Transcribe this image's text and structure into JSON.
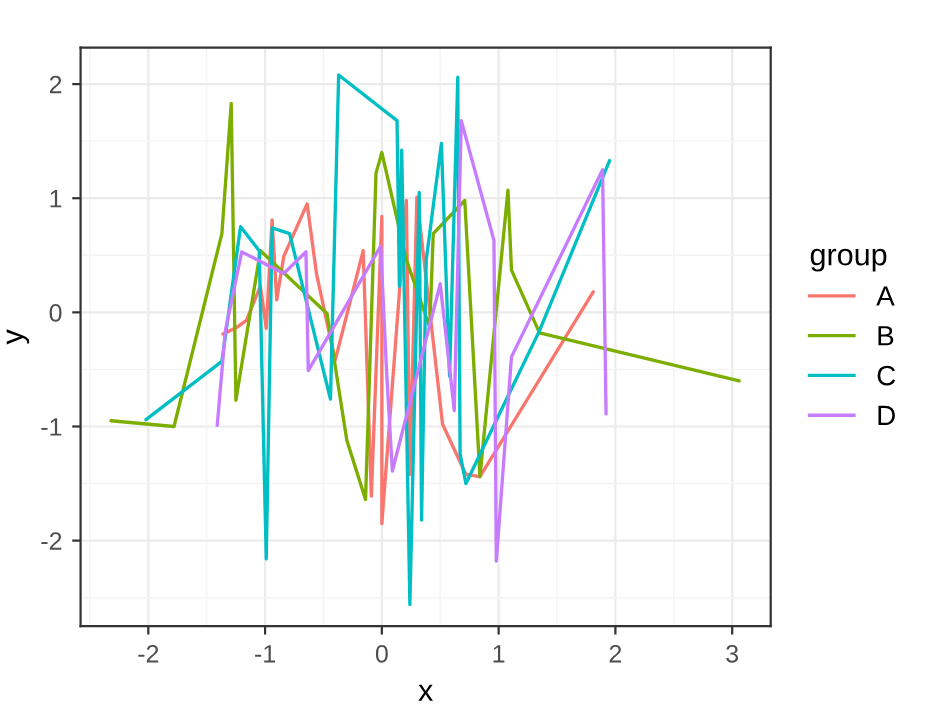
{
  "chart_data": {
    "type": "line",
    "xlabel": "x",
    "ylabel": "y",
    "legend_title": "group",
    "legend": "right",
    "grid": true,
    "xlim": [
      -2.58,
      3.33
    ],
    "ylim": [
      -2.75,
      2.32
    ],
    "xticks": [
      -2,
      -1,
      0,
      1,
      2,
      3
    ],
    "yticks": [
      -2,
      -1,
      0,
      1,
      2
    ],
    "series": [
      {
        "name": "A",
        "color": "#f8766d",
        "x": [
          -1.36,
          -1.24,
          -1.16,
          -1.04,
          -0.99,
          -0.94,
          -0.9,
          -0.84,
          -0.64,
          -0.56,
          -0.4,
          -0.16,
          -0.09,
          0.0,
          0.0,
          0.21,
          0.24,
          0.3,
          0.52,
          0.72,
          0.84,
          1.81
        ],
        "values": [
          -0.19,
          -0.13,
          -0.07,
          0.23,
          -0.14,
          0.81,
          0.11,
          0.49,
          0.95,
          0.34,
          -0.42,
          0.54,
          -1.61,
          0.84,
          -1.85,
          0.98,
          -1.42,
          1.01,
          -0.98,
          -1.42,
          -1.44,
          0.18
        ]
      },
      {
        "name": "B",
        "color": "#7cae00",
        "x": [
          -2.32,
          -1.78,
          -1.37,
          -1.29,
          -1.25,
          -1.04,
          -0.47,
          -0.3,
          -0.14,
          -0.05,
          0.0,
          0.21,
          0.41,
          0.44,
          0.71,
          0.84,
          1.08,
          1.11,
          1.35,
          3.06
        ],
        "values": [
          -0.95,
          -1.0,
          0.69,
          1.83,
          -0.77,
          0.54,
          -0.01,
          -1.12,
          -1.64,
          1.22,
          1.4,
          0.46,
          -0.13,
          0.69,
          0.98,
          -1.44,
          1.07,
          0.37,
          -0.18,
          -0.6
        ]
      },
      {
        "name": "C",
        "color": "#00bfc4",
        "x": [
          -2.02,
          -1.37,
          -1.21,
          -1.05,
          -0.99,
          -0.94,
          -0.79,
          -0.44,
          -0.37,
          0.13,
          0.15,
          0.17,
          0.24,
          0.32,
          0.34,
          0.38,
          0.51,
          0.58,
          0.65,
          0.67,
          0.72,
          1.35,
          1.95
        ],
        "values": [
          -0.94,
          -0.43,
          0.75,
          0.54,
          -2.16,
          0.74,
          0.69,
          -0.76,
          2.08,
          1.68,
          0.23,
          1.42,
          -2.56,
          1.05,
          -1.82,
          0.46,
          1.48,
          -0.56,
          2.06,
          -1.24,
          -1.5,
          -0.16,
          1.33
        ]
      },
      {
        "name": "D",
        "color": "#c77cff",
        "x": [
          -1.41,
          -1.34,
          -1.2,
          -0.84,
          -0.65,
          -0.63,
          -0.01,
          0.04,
          0.09,
          0.5,
          0.62,
          0.68,
          0.96,
          0.98,
          1.11,
          1.89,
          1.92
        ],
        "values": [
          -0.99,
          -0.16,
          0.53,
          0.34,
          0.53,
          -0.51,
          0.58,
          -0.51,
          -1.39,
          0.25,
          -0.86,
          1.68,
          0.63,
          -2.18,
          -0.39,
          1.25,
          -0.89
        ]
      }
    ]
  }
}
